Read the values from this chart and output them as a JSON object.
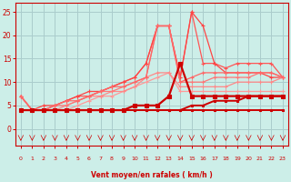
{
  "x": [
    0,
    1,
    2,
    3,
    4,
    5,
    6,
    7,
    8,
    9,
    10,
    11,
    12,
    13,
    14,
    15,
    16,
    17,
    18,
    19,
    20,
    21,
    22,
    23
  ],
  "series": [
    {
      "y": [
        4,
        4,
        4,
        4,
        4,
        4,
        4,
        4,
        4,
        4,
        4,
        4,
        4,
        4,
        4,
        4,
        4,
        4,
        4,
        4,
        4,
        4,
        4,
        4
      ],
      "color": "#cc0000",
      "lw": 1.4,
      "marker": "s",
      "ms": 2.0,
      "zorder": 6
    },
    {
      "y": [
        4,
        4,
        4,
        4,
        4,
        4,
        4,
        4,
        4,
        4,
        4,
        4,
        4,
        4,
        4,
        5,
        5,
        6,
        6,
        6,
        7,
        7,
        7,
        7
      ],
      "color": "#cc0000",
      "lw": 1.4,
      "marker": "s",
      "ms": 2.0,
      "zorder": 6
    },
    {
      "y": [
        4,
        4,
        4,
        4,
        4,
        4,
        4,
        4,
        4,
        4,
        5,
        5,
        5,
        7,
        14,
        7,
        7,
        7,
        7,
        7,
        7,
        7,
        7,
        7
      ],
      "color": "#cc0000",
      "lw": 1.6,
      "marker": "s",
      "ms": 2.2,
      "zorder": 7
    },
    {
      "y": [
        7,
        4,
        4,
        4,
        4,
        5,
        6,
        7,
        7,
        8,
        9,
        10,
        11,
        12,
        8,
        8,
        8,
        8,
        8,
        8,
        8,
        8,
        8,
        8
      ],
      "color": "#ff9999",
      "lw": 0.9,
      "marker": "+",
      "ms": 3.0,
      "zorder": 3
    },
    {
      "y": [
        7,
        4,
        4,
        4,
        5,
        6,
        7,
        7,
        8,
        8,
        9,
        11,
        12,
        12,
        9,
        9,
        9,
        9,
        9,
        10,
        10,
        10,
        10,
        11
      ],
      "color": "#ff8888",
      "lw": 0.9,
      "marker": "+",
      "ms": 3.0,
      "zorder": 3
    },
    {
      "y": [
        7,
        4,
        4,
        5,
        5,
        6,
        7,
        8,
        8,
        9,
        10,
        11,
        22,
        22,
        10,
        10,
        10,
        11,
        11,
        11,
        11,
        12,
        12,
        11
      ],
      "color": "#ff7777",
      "lw": 0.9,
      "marker": "+",
      "ms": 3.0,
      "zorder": 3
    },
    {
      "y": [
        7,
        4,
        4,
        5,
        6,
        6,
        7,
        8,
        9,
        9,
        10,
        11,
        22,
        22,
        10,
        11,
        12,
        12,
        12,
        12,
        12,
        12,
        12,
        11
      ],
      "color": "#ff6666",
      "lw": 0.9,
      "marker": "+",
      "ms": 3.0,
      "zorder": 3
    },
    {
      "y": [
        7,
        4,
        4,
        5,
        6,
        7,
        7,
        8,
        9,
        10,
        11,
        14,
        22,
        22,
        11,
        25,
        14,
        14,
        13,
        14,
        14,
        14,
        14,
        11
      ],
      "color": "#ff5555",
      "lw": 0.9,
      "marker": "+",
      "ms": 3.0,
      "zorder": 2
    },
    {
      "y": [
        7,
        4,
        5,
        5,
        6,
        7,
        8,
        8,
        9,
        10,
        11,
        14,
        22,
        22,
        11,
        25,
        22,
        14,
        12,
        12,
        12,
        12,
        11,
        11
      ],
      "color": "#ff4444",
      "lw": 0.9,
      "marker": "+",
      "ms": 3.0,
      "zorder": 2
    }
  ],
  "xlabel": "Vent moyen/en rafales ( km/h )",
  "bg_color": "#cceee8",
  "grid_color": "#aacccc",
  "axis_color": "#cc0000",
  "ylim": [
    -3.5,
    27
  ],
  "xlim": [
    -0.5,
    23.5
  ],
  "yticks": [
    0,
    5,
    10,
    15,
    20,
    25
  ],
  "xticks": [
    0,
    1,
    2,
    3,
    4,
    5,
    6,
    7,
    8,
    9,
    10,
    11,
    12,
    13,
    14,
    15,
    16,
    17,
    18,
    19,
    20,
    21,
    22,
    23
  ],
  "arrow_color": "#cc0000"
}
